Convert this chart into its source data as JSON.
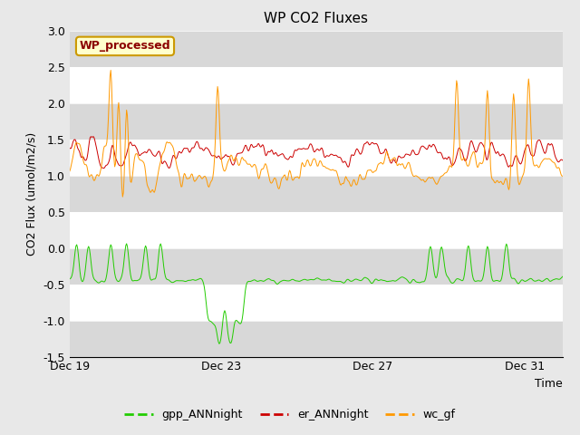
{
  "title": "WP CO2 Fluxes",
  "xlabel": "Time",
  "ylabel": "CO2 Flux (umol/m2/s)",
  "ylim": [
    -1.5,
    3.0
  ],
  "yticks": [
    -1.5,
    -1.0,
    -0.5,
    0.0,
    0.5,
    1.0,
    1.5,
    2.0,
    2.5,
    3.0
  ],
  "xtick_labels": [
    "Dec 19",
    "Dec 23",
    "Dec 27",
    "Dec 31"
  ],
  "xtick_positions": [
    0,
    4,
    8,
    12
  ],
  "n_days": 13,
  "points_per_day": 48,
  "legend_label": "WP_processed",
  "line_labels": [
    "gpp_ANNnight",
    "er_ANNnight",
    "wc_gf"
  ],
  "line_colors": [
    "#22cc00",
    "#cc0000",
    "#ff9900"
  ],
  "background_color": "#e8e8e8",
  "plot_bg_color": "#ffffff",
  "band_color": "#d8d8d8",
  "title_fontsize": 11,
  "label_fontsize": 9,
  "tick_fontsize": 9,
  "seed": 42
}
